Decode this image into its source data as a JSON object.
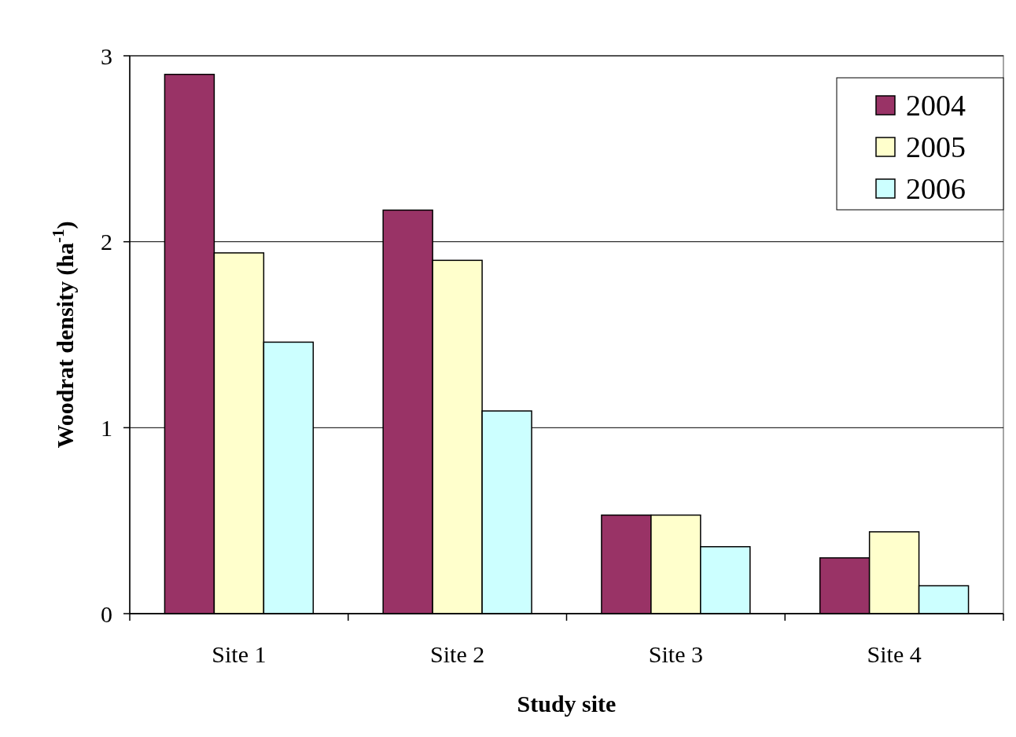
{
  "chart_data": {
    "type": "bar",
    "xlabel": "Study site",
    "ylabel": "Woodrat density (ha$^{-1}$)",
    "categories": [
      "Site 1",
      "Site 2",
      "Site 3",
      "Site 4"
    ],
    "series": [
      {
        "name": "2004",
        "color": "#993366",
        "values": [
          2.9,
          2.17,
          0.53,
          0.3
        ]
      },
      {
        "name": "2005",
        "color": "#ffffcc",
        "values": [
          1.94,
          1.9,
          0.53,
          0.44
        ]
      },
      {
        "name": "2006",
        "color": "#ccffff",
        "values": [
          1.46,
          1.09,
          0.36,
          0.15
        ]
      }
    ],
    "ylim": [
      0,
      3
    ],
    "yticks": [
      0,
      1,
      2,
      3
    ],
    "grid": "y",
    "legend": "top right"
  }
}
